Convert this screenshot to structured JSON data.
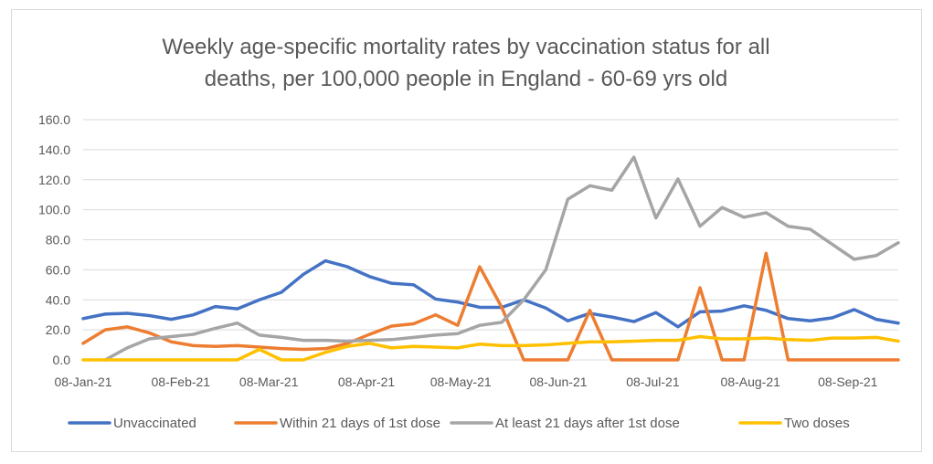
{
  "chart_data": {
    "type": "line",
    "title_line1": "Weekly age-specific mortality rates by vaccination status for all",
    "title_line2": "deaths, per 100,000 people in England - 60-69 yrs old",
    "xlabel": "",
    "ylabel": "",
    "ylim": [
      0,
      160
    ],
    "yticks": [
      "0.0",
      "20.0",
      "40.0",
      "60.0",
      "80.0",
      "100.0",
      "120.0",
      "140.0",
      "160.0"
    ],
    "xtick_labels": [
      "08-Jan-21",
      "08-Feb-21",
      "08-Mar-21",
      "08-Apr-21",
      "08-May-21",
      "08-Jun-21",
      "08-Jul-21",
      "08-Aug-21",
      "08-Sep-21"
    ],
    "xtick_weeks": [
      0,
      4.43,
      8.43,
      12.86,
      17.14,
      21.57,
      25.86,
      30.29,
      34.71
    ],
    "weeks": 37,
    "gridlines": true,
    "legend_position": "bottom",
    "series": [
      {
        "name": "Unvaccinated",
        "color": "#4472C4",
        "values": [
          27.5,
          30.5,
          31.0,
          29.5,
          27.0,
          30.0,
          35.5,
          34.0,
          40.0,
          45.0,
          57.0,
          66.0,
          62.0,
          55.5,
          51.0,
          50.0,
          40.5,
          38.5,
          35.0,
          35.0,
          40.0,
          34.5,
          26.0,
          31.0,
          28.5,
          25.5,
          31.5,
          22.0,
          32.0,
          32.5,
          36.0,
          33.0,
          27.5,
          26.0,
          28.0,
          33.5,
          27.0,
          24.5
        ]
      },
      {
        "name": "Within 21 days of 1st dose",
        "color": "#ED7D31",
        "values": [
          11.0,
          20.0,
          22.0,
          18.0,
          12.0,
          9.5,
          9.0,
          9.5,
          8.5,
          7.5,
          7.0,
          7.5,
          11.0,
          17.0,
          22.5,
          24.0,
          30.0,
          23.0,
          62.0,
          35.0,
          0.0,
          0.0,
          0.0,
          33.0,
          0.0,
          0.0,
          0.0,
          0.0,
          48.0,
          0.0,
          0.0,
          71.0,
          0.0,
          0.0,
          0.0,
          0.0,
          0.0,
          0.0
        ]
      },
      {
        "name": "At least 21 days after 1st dose",
        "color": "#A5A5A5",
        "values": [
          null,
          0.0,
          8.0,
          14.0,
          15.5,
          17.0,
          21.0,
          24.5,
          16.5,
          15.0,
          13.0,
          13.0,
          12.5,
          13.0,
          13.5,
          15.0,
          16.5,
          17.5,
          23.0,
          25.0,
          40.0,
          60.0,
          107.0,
          116.0,
          113.0,
          135.0,
          94.5,
          120.5,
          89.0,
          101.5,
          95.0,
          98.0,
          89.0,
          87.0,
          77.0,
          67.0,
          69.5,
          78.0
        ]
      },
      {
        "name": "Two doses",
        "color": "#FFC000",
        "values": [
          0.0,
          0.0,
          0.0,
          0.0,
          0.0,
          0.0,
          0.0,
          0.0,
          7.0,
          0.0,
          0.0,
          5.0,
          9.0,
          11.0,
          8.0,
          9.0,
          8.5,
          8.0,
          10.5,
          9.5,
          9.5,
          10.0,
          11.0,
          12.0,
          12.0,
          12.5,
          13.0,
          13.0,
          15.5,
          14.0,
          14.0,
          14.5,
          13.5,
          13.0,
          14.5,
          14.5,
          15.0,
          12.5
        ]
      }
    ]
  }
}
